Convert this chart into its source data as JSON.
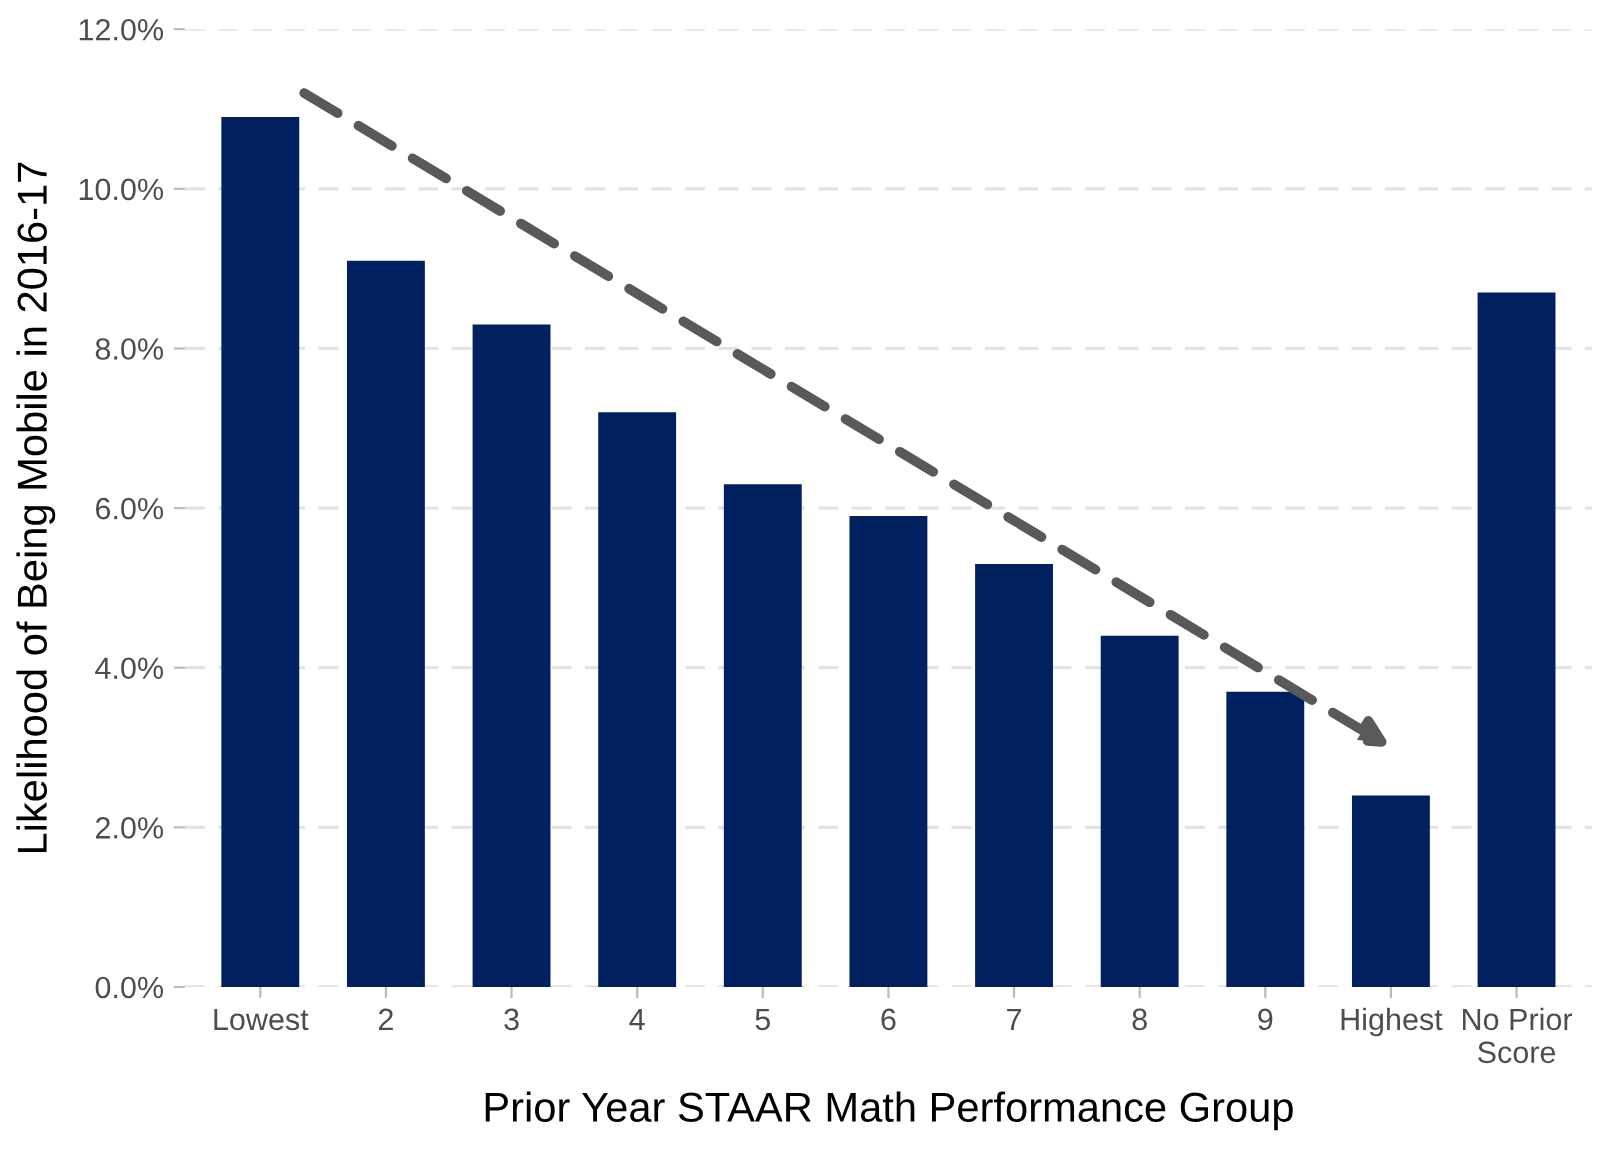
{
  "chart_data": {
    "type": "bar",
    "xlabel": "Prior Year STAAR Math Performance Group",
    "ylabel": "Likelihood of Being Mobile in 2016-17",
    "categories": [
      "Lowest",
      "2",
      "3",
      "4",
      "5",
      "6",
      "7",
      "8",
      "9",
      "Highest",
      "No Prior\nScore"
    ],
    "values": [
      10.9,
      9.1,
      8.3,
      7.2,
      6.3,
      5.9,
      5.3,
      4.4,
      3.7,
      2.4,
      8.7
    ],
    "color": "#002060",
    "ylim": [
      0,
      12
    ],
    "yticks": [
      {
        "value": 0,
        "label": "0.0%"
      },
      {
        "value": 2,
        "label": "2.0%"
      },
      {
        "value": 4,
        "label": "4.0%"
      },
      {
        "value": 6,
        "label": "6.0%"
      },
      {
        "value": 8,
        "label": "8.0%"
      },
      {
        "value": 10,
        "label": "10.0%"
      },
      {
        "value": 12,
        "label": "12.0%"
      }
    ],
    "grid": "y"
  }
}
